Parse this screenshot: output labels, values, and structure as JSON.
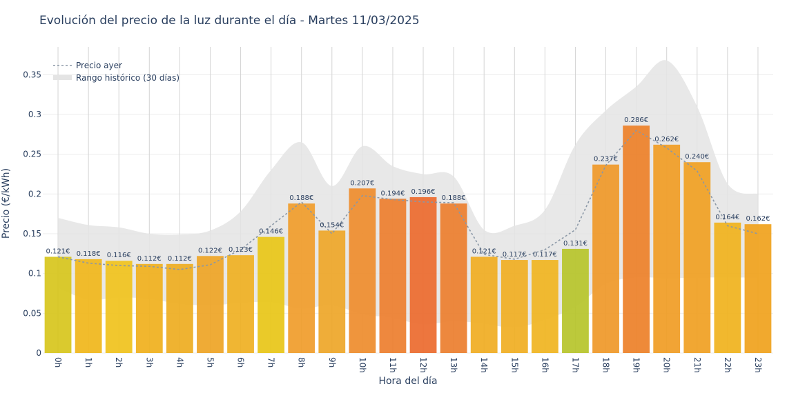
{
  "chart_data": {
    "type": "bar",
    "title": "Evolución del precio de la luz durante el día - Martes 11/03/2025",
    "xlabel": "Hora del día",
    "ylabel": "Precio (€/kWh)",
    "ylim": [
      0,
      0.385
    ],
    "yticks": [
      0,
      0.05,
      0.1,
      0.15,
      0.2,
      0.25,
      0.3,
      0.35
    ],
    "ytick_labels": [
      "0",
      "0.05",
      "0.1",
      "0.15",
      "0.2",
      "0.25",
      "0.3",
      "0.35"
    ],
    "grid": true,
    "legend_position": "top-left",
    "categories": [
      "0h",
      "1h",
      "2h",
      "3h",
      "4h",
      "5h",
      "6h",
      "7h",
      "8h",
      "9h",
      "10h",
      "11h",
      "12h",
      "13h",
      "14h",
      "15h",
      "16h",
      "17h",
      "18h",
      "19h",
      "20h",
      "21h",
      "22h",
      "23h"
    ],
    "series": [
      {
        "type": "bar",
        "values": [
          0.121,
          0.118,
          0.116,
          0.112,
          0.112,
          0.122,
          0.123,
          0.146,
          0.188,
          0.154,
          0.207,
          0.194,
          0.196,
          0.188,
          0.121,
          0.117,
          0.117,
          0.131,
          0.237,
          0.286,
          0.262,
          0.24,
          0.164,
          0.162
        ],
        "labels": [
          "0.121€",
          "0.118€",
          "0.116€",
          "0.112€",
          "0.112€",
          "0.122€",
          "0.123€",
          "0.146€",
          "0.188€",
          "0.154€",
          "0.207€",
          "0.194€",
          "0.196€",
          "0.188€",
          "0.121€",
          "0.117€",
          "0.117€",
          "0.131€",
          "0.237€",
          "0.286€",
          "0.262€",
          "0.240€",
          "0.164€",
          "0.162€"
        ],
        "colors": [
          "#d7c51c",
          "#f0b61a",
          "#f0c21c",
          "#f0b01c",
          "#eeac20",
          "#eea425",
          "#efb022",
          "#e8c617",
          "#f09c2a",
          "#eea628",
          "#ee8c2d",
          "#ed7e2e",
          "#ec6a2e",
          "#ec7e2e",
          "#f0ac22",
          "#f0ae22",
          "#f0b420",
          "#b6c42a",
          "#ef9828",
          "#ed8028",
          "#f09c24",
          "#f0a022",
          "#f0b21c",
          "#f0a21c"
        ]
      },
      {
        "name": "Precio ayer",
        "type": "line",
        "color": "#8a97a6",
        "values": [
          0.121,
          0.113,
          0.11,
          0.109,
          0.105,
          0.111,
          0.13,
          0.16,
          0.19,
          0.15,
          0.198,
          0.193,
          0.19,
          0.189,
          0.124,
          0.118,
          0.13,
          0.155,
          0.236,
          0.28,
          0.258,
          0.229,
          0.16,
          0.15
        ]
      },
      {
        "name": "Rango histórico (30 días)",
        "type": "area",
        "color": "#e4e4e4",
        "upper": [
          0.17,
          0.161,
          0.158,
          0.15,
          0.149,
          0.154,
          0.178,
          0.23,
          0.265,
          0.21,
          0.26,
          0.235,
          0.225,
          0.222,
          0.155,
          0.16,
          0.18,
          0.262,
          0.305,
          0.335,
          0.368,
          0.31,
          0.213,
          0.2
        ],
        "lower": [
          0.082,
          0.067,
          0.07,
          0.068,
          0.062,
          0.06,
          0.063,
          0.064,
          0.056,
          0.06,
          0.049,
          0.044,
          0.036,
          0.04,
          0.037,
          0.032,
          0.042,
          0.058,
          0.087,
          0.095,
          0.094,
          0.095,
          0.095,
          0.095
        ]
      }
    ]
  }
}
